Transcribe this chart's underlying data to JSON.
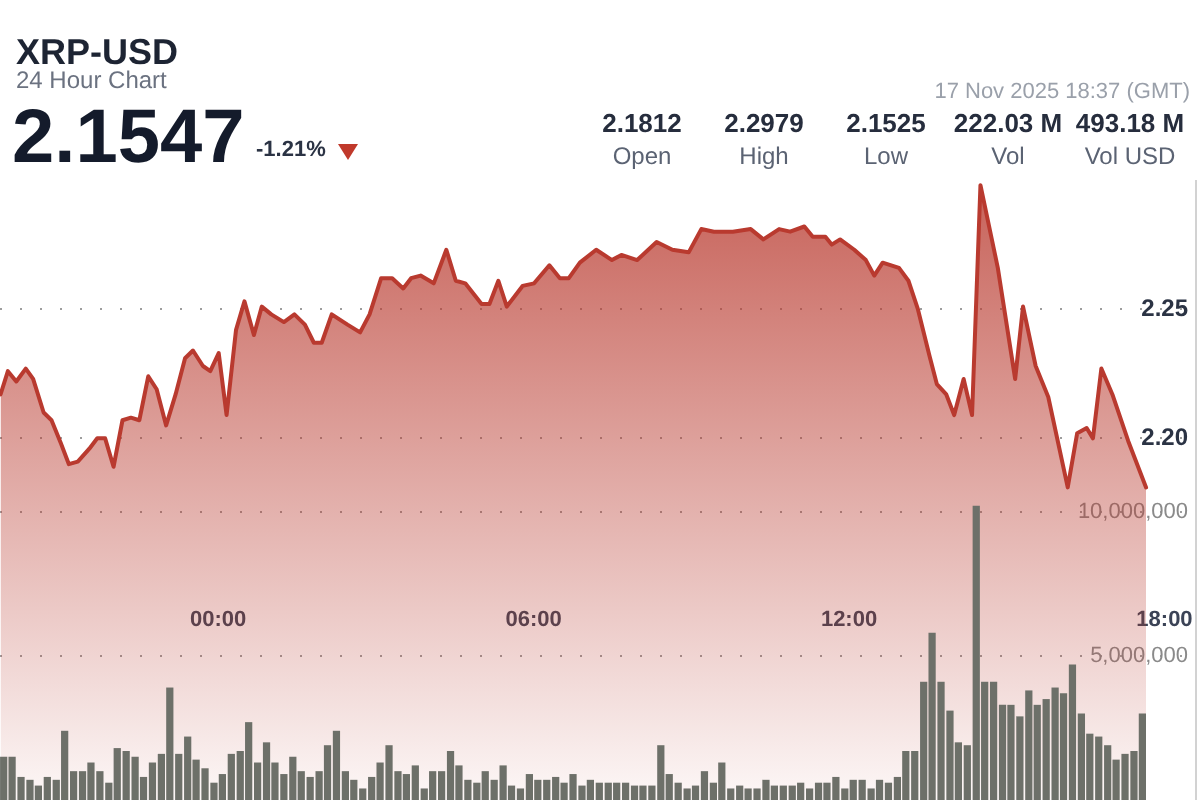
{
  "chart_data": {
    "type": "area",
    "title": "XRP-USD",
    "subtitle": "24 Hour Chart",
    "annotations": [
      "2.1547",
      "-1.21%",
      "2.1812",
      "Open",
      "2.2979",
      "High",
      "2.1525",
      "Low",
      "222.03 M",
      "Vol",
      "493.18 M",
      "Vol USD",
      "17 Nov 2025 18:37 (GMT)"
    ],
    "xlim": [
      -4.15,
      18.6
    ],
    "xticks": [
      {
        "value": 0,
        "label": "00:00"
      },
      {
        "value": 6,
        "label": "06:00"
      },
      {
        "value": 12,
        "label": "12:00"
      },
      {
        "value": 18,
        "label": "18:00"
      }
    ],
    "ylim": [
      2.06,
      2.3
    ],
    "yticks": [
      {
        "value": 2.2,
        "label": "2.20"
      },
      2.25
    ],
    "y2lim": [
      0,
      21500000
    ],
    "y2ticks": [
      {
        "value": 5000000,
        "label": "5,000,000"
      },
      {
        "value": 10000000,
        "label": "10,000,000"
      }
    ],
    "grid": "y",
    "series": [
      {
        "color": "#b93a2f",
        "x": [
          -4.14,
          -4,
          -3.84,
          -3.66,
          -3.52,
          -3.32,
          -3.17,
          -2.99,
          -2.84,
          -2.67,
          -2.45,
          -2.3,
          -2.15,
          -1.99,
          -1.82,
          -1.66,
          -1.5,
          -1.33,
          -1.17,
          -0.99,
          -0.81,
          -0.63,
          -0.48,
          -0.29,
          -0.15,
          0.01,
          0.16,
          0.34,
          0.5,
          0.68,
          0.83,
          1.01,
          1.25,
          1.45,
          1.65,
          1.82,
          1.97,
          2.16,
          2.46,
          2.7,
          2.88,
          3.1,
          3.31,
          3.52,
          3.67,
          3.85,
          4.1,
          4.34,
          4.52,
          4.7,
          5.01,
          5.16,
          5.33,
          5.49,
          5.79,
          6.01,
          6.3,
          6.5,
          6.67,
          6.88,
          7.19,
          7.49,
          7.67,
          7.97,
          8.34,
          8.64,
          8.95,
          9.19,
          9.43,
          9.79,
          10.13,
          10.37,
          10.67,
          10.88,
          11.15,
          11.31,
          11.55,
          11.67,
          11.83,
          12.1,
          12.32,
          12.48,
          12.64,
          12.95,
          13.13,
          13.31,
          13.53,
          13.67,
          13.85,
          14,
          14.18,
          14.34,
          14.5,
          14.83,
          15.16,
          15.31,
          15.55,
          15.79,
          16.16,
          16.34,
          16.52,
          16.64,
          16.8,
          17.01,
          17.31,
          17.65
        ],
        "values": [
          2.217,
          2.226,
          2.222,
          2.227,
          2.223,
          2.21,
          2.207,
          2.198,
          2.19,
          2.191,
          2.196,
          2.2,
          2.2,
          2.189,
          2.207,
          2.208,
          2.207,
          2.224,
          2.219,
          2.205,
          2.217,
          2.231,
          2.234,
          2.228,
          2.226,
          2.233,
          2.209,
          2.242,
          2.253,
          2.24,
          2.251,
          2.248,
          2.245,
          2.248,
          2.244,
          2.237,
          2.237,
          2.248,
          2.244,
          2.241,
          2.248,
          2.262,
          2.262,
          2.258,
          2.262,
          2.263,
          2.26,
          2.273,
          2.261,
          2.26,
          2.252,
          2.252,
          2.261,
          2.251,
          2.259,
          2.26,
          2.267,
          2.262,
          2.262,
          2.268,
          2.273,
          2.269,
          2.271,
          2.269,
          2.276,
          2.273,
          2.272,
          2.281,
          2.28,
          2.28,
          2.281,
          2.277,
          2.281,
          2.28,
          2.282,
          2.278,
          2.278,
          2.275,
          2.277,
          2.273,
          2.269,
          2.263,
          2.268,
          2.266,
          2.261,
          2.25,
          2.232,
          2.221,
          2.217,
          2.209,
          2.223,
          2.209,
          2.298,
          2.266,
          2.223,
          2.251,
          2.228,
          2.216,
          2.181,
          2.202,
          2.204,
          2.2,
          2.227,
          2.217,
          2.199,
          2.181
        ]
      },
      {
        "type": "bar",
        "axis": "y2",
        "color": "#6d7069",
        "x": [
          -4.08,
          -3.92,
          -3.75,
          -3.58,
          -3.42,
          -3.25,
          -3.08,
          -2.92,
          -2.75,
          -2.58,
          -2.42,
          -2.25,
          -2.08,
          -1.92,
          -1.75,
          -1.58,
          -1.42,
          -1.25,
          -1.08,
          -0.92,
          -0.75,
          -0.58,
          -0.42,
          -0.25,
          -0.08,
          0.08,
          0.25,
          0.42,
          0.58,
          0.75,
          0.92,
          1.08,
          1.25,
          1.42,
          1.58,
          1.75,
          1.92,
          2.08,
          2.25,
          2.42,
          2.58,
          2.75,
          2.92,
          3.08,
          3.25,
          3.42,
          3.58,
          3.75,
          3.92,
          4.08,
          4.25,
          4.42,
          4.58,
          4.75,
          4.92,
          5.08,
          5.25,
          5.42,
          5.58,
          5.75,
          5.92,
          6.08,
          6.25,
          6.42,
          6.58,
          6.75,
          6.92,
          7.08,
          7.25,
          7.42,
          7.58,
          7.75,
          7.92,
          8.08,
          8.25,
          8.42,
          8.58,
          8.75,
          8.92,
          9.08,
          9.25,
          9.42,
          9.58,
          9.75,
          9.92,
          10.08,
          10.25,
          10.42,
          10.58,
          10.75,
          10.92,
          11.08,
          11.25,
          11.42,
          11.58,
          11.75,
          11.92,
          12.08,
          12.25,
          12.42,
          12.58,
          12.75,
          12.92,
          13.08,
          13.25,
          13.42,
          13.58,
          13.75,
          13.92,
          14.08,
          14.25,
          14.42,
          14.58,
          14.75,
          14.92,
          15.08,
          15.25,
          15.42,
          15.58,
          15.75,
          15.92,
          16.08,
          16.25,
          16.42,
          16.58,
          16.75,
          16.92,
          17.08,
          17.25,
          17.42,
          17.58
        ],
        "values": [
          1500000,
          1500000,
          800000,
          700000,
          500000,
          800000,
          700000,
          2400000,
          1000000,
          1000000,
          1300000,
          1000000,
          600000,
          1800000,
          1700000,
          1500000,
          800000,
          1300000,
          1600000,
          3900000,
          1600000,
          2200000,
          1400000,
          1100000,
          600000,
          900000,
          1600000,
          1700000,
          2700000,
          1300000,
          2000000,
          1300000,
          900000,
          1500000,
          1000000,
          800000,
          1000000,
          1900000,
          2400000,
          1000000,
          700000,
          400000,
          800000,
          1300000,
          1900000,
          1000000,
          900000,
          1200000,
          400000,
          1000000,
          1000000,
          1700000,
          1200000,
          700000,
          600000,
          1000000,
          700000,
          1200000,
          500000,
          400000,
          900000,
          700000,
          700000,
          800000,
          600000,
          900000,
          500000,
          700000,
          600000,
          600000,
          600000,
          600000,
          500000,
          500000,
          500000,
          1900000,
          900000,
          600000,
          400000,
          500000,
          1000000,
          600000,
          1300000,
          400000,
          500000,
          400000,
          400000,
          700000,
          500000,
          500000,
          500000,
          600000,
          400000,
          600000,
          600000,
          800000,
          400000,
          700000,
          700000,
          400000,
          700000,
          600000,
          800000,
          1700000,
          1700000,
          4100000,
          5800000,
          4100000,
          3100000,
          2000000,
          1900000,
          10200000,
          4100000,
          4100000,
          3300000,
          3300000,
          2900000,
          3800000,
          3300000,
          3500000,
          3900000,
          3700000,
          4700000,
          3000000,
          2300000,
          2200000,
          1900000,
          1400000,
          1600000,
          1700000,
          3000000
        ]
      }
    ]
  }
}
